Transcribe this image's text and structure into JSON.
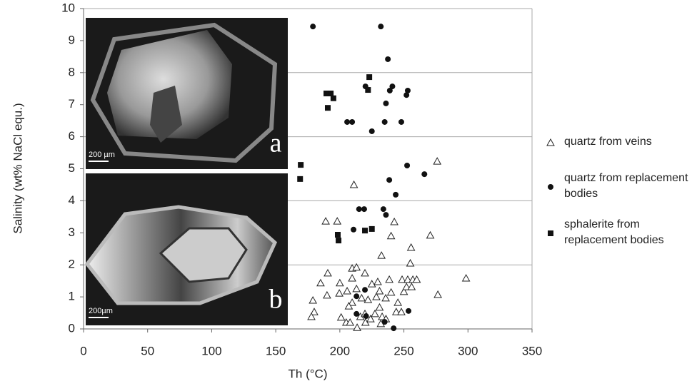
{
  "chart_data": {
    "type": "scatter",
    "xlabel": "Th (°C)",
    "ylabel": "Salinity (wt% NaCl equ.)",
    "xlim": [
      0,
      350
    ],
    "xticks": [
      0,
      50,
      100,
      150,
      200,
      250,
      300,
      350
    ],
    "ylim": [
      0,
      10
    ],
    "yticks": [
      0,
      1,
      2,
      3,
      4,
      5,
      6,
      7,
      8,
      9,
      10
    ],
    "grid_lines": [
      2,
      4,
      6,
      8,
      10
    ],
    "insets": [
      {
        "label": "a",
        "scale": "200 µm"
      },
      {
        "label": "b",
        "scale": "200µm"
      }
    ],
    "series": [
      {
        "name": "quartz from veins",
        "marker": "triangle",
        "color": "#222",
        "x": [
          276,
          211,
          270.6,
          298.5,
          276.5,
          255,
          255.6,
          242.5,
          240,
          189,
          198,
          232.5,
          190.6,
          185,
          179,
          180,
          177.8,
          190,
          200,
          209.6,
          213,
          219.6,
          209.6,
          205.7,
          199.6,
          213,
          217,
          222,
          209.6,
          207,
          201,
          205,
          208,
          213.5,
          216,
          220,
          224,
          227.4,
          231,
          233,
          236,
          232,
          235.8,
          240,
          245.3,
          244,
          248,
          250,
          252,
          248.6,
          253,
          257,
          260,
          256,
          238.6,
          229.6,
          225,
          228.5,
          231,
          219.6
        ],
        "values": [
          5.23,
          4.5,
          2.92,
          1.58,
          1.07,
          2.05,
          2.54,
          3.34,
          2.9,
          3.36,
          3.36,
          2.29,
          1.74,
          1.43,
          0.89,
          0.53,
          0.38,
          1.05,
          1.43,
          1.89,
          1.92,
          1.74,
          1.58,
          1.18,
          1.11,
          1.25,
          0.96,
          0.91,
          0.82,
          0.71,
          0.36,
          0.2,
          0.2,
          0.04,
          0.38,
          0.2,
          0.31,
          0.47,
          0.67,
          0.38,
          0.31,
          0.16,
          0.96,
          1.14,
          0.82,
          0.53,
          0.53,
          1.16,
          1.31,
          1.54,
          1.54,
          1.54,
          1.54,
          1.31,
          1.54,
          1.47,
          1.4,
          1.0,
          1.18,
          0.47
        ]
      },
      {
        "name": "quartz from replacement bodies",
        "marker": "circle",
        "color": "#111",
        "x": [
          179,
          232,
          237.5,
          220,
          241,
          239,
          253,
          252,
          236,
          205.7,
          209.6,
          235,
          248,
          225,
          252.5,
          266,
          238.6,
          243.6,
          215,
          219,
          234,
          236,
          210.7,
          219.6,
          213,
          220.5,
          235,
          242,
          253.6,
          213
        ],
        "values": [
          9.44,
          9.44,
          8.42,
          7.57,
          7.57,
          7.44,
          7.44,
          7.3,
          7.04,
          6.46,
          6.46,
          6.46,
          6.46,
          6.17,
          5.1,
          4.83,
          4.65,
          4.19,
          3.74,
          3.74,
          3.74,
          3.56,
          3.1,
          1.22,
          1.02,
          0.4,
          0.22,
          0.02,
          0.56,
          0.47
        ]
      },
      {
        "name": "sphalerite from replacement bodies",
        "marker": "square",
        "color": "#111",
        "x": [
          189.5,
          192.9,
          195,
          190.6,
          223,
          222,
          169.5,
          169,
          198.4,
          199,
          225,
          219.6
        ],
        "values": [
          7.35,
          7.35,
          7.2,
          6.9,
          7.86,
          7.46,
          5.12,
          4.68,
          2.94,
          2.76,
          3.12,
          3.07
        ]
      }
    ]
  }
}
